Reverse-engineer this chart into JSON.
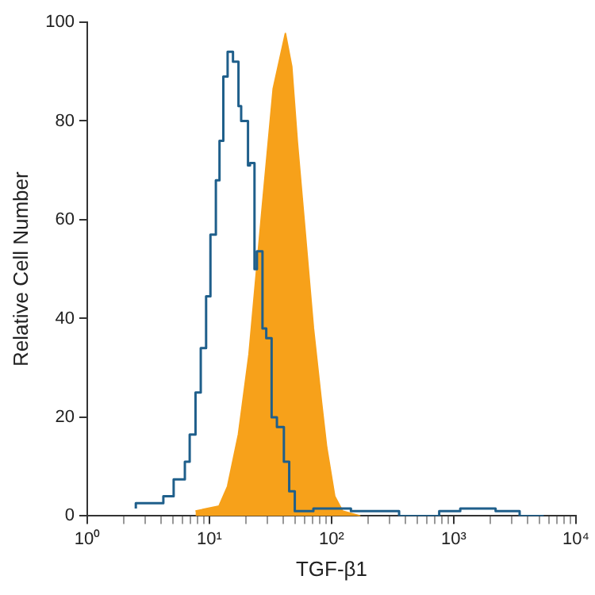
{
  "chart_data": {
    "type": "step",
    "xlabel": "TGF-β1",
    "ylabel": "Relative Cell Number",
    "log": "x",
    "xlim": [
      1,
      10000
    ],
    "ylim": [
      0,
      100
    ],
    "xticks": [
      {
        "value": 1,
        "label": "10⁰"
      },
      {
        "value": 2,
        "label": null
      },
      {
        "value": 3,
        "label": null
      },
      {
        "value": 4,
        "label": null
      },
      {
        "value": 5,
        "label": null
      },
      {
        "value": 6,
        "label": null
      },
      {
        "value": 7,
        "label": null
      },
      {
        "value": 8,
        "label": null
      },
      {
        "value": 9,
        "label": null
      },
      {
        "value": 10,
        "label": "10¹"
      },
      {
        "value": 20,
        "label": null
      },
      {
        "value": 30,
        "label": null
      },
      {
        "value": 40,
        "label": null
      },
      {
        "value": 50,
        "label": null
      },
      {
        "value": 60,
        "label": null
      },
      {
        "value": 70,
        "label": null
      },
      {
        "value": 80,
        "label": null
      },
      {
        "value": 90,
        "label": null
      },
      {
        "value": 100,
        "label": "10²"
      },
      {
        "value": 200,
        "label": null
      },
      {
        "value": 300,
        "label": null
      },
      {
        "value": 400,
        "label": null
      },
      {
        "value": 500,
        "label": null
      },
      {
        "value": 600,
        "label": null
      },
      {
        "value": 700,
        "label": null
      },
      {
        "value": 800,
        "label": null
      },
      {
        "value": 900,
        "label": null
      },
      {
        "value": 1000,
        "label": "10³"
      },
      {
        "value": 2000,
        "label": null
      },
      {
        "value": 3000,
        "label": null
      },
      {
        "value": 4000,
        "label": null
      },
      {
        "value": 5000,
        "label": null
      },
      {
        "value": 6000,
        "label": null
      },
      {
        "value": 7000,
        "label": null
      },
      {
        "value": 8000,
        "label": null
      },
      {
        "value": 9000,
        "label": null
      },
      {
        "value": 10000,
        "label": "10⁴"
      }
    ],
    "yticks": [
      0,
      20,
      40,
      60,
      80,
      100
    ],
    "series": [
      {
        "type": "area",
        "color": "#f7a11a",
        "x": [
          7.7,
          12,
          14.1,
          17.3,
          21.1,
          27.2,
          33.3,
          41.9,
          47.2,
          52.4,
          61,
          71,
          82.7,
          91,
          106,
          123,
          172
        ],
        "values": [
          1,
          2,
          6,
          16.5,
          32.7,
          63,
          86.5,
          97.7,
          91,
          75.8,
          57,
          38,
          23,
          14,
          4,
          1,
          0
        ]
      },
      {
        "color": "#1f5f8b",
        "x": [
          2.5,
          4.2,
          5.1,
          6.3,
          6.9,
          7.7,
          8.5,
          9.4,
          10.2,
          11.3,
          12.1,
          13,
          14.1,
          15.6,
          17.3,
          18.2,
          20.7,
          21.5,
          23.4,
          24.5,
          27.2,
          29.2,
          32.3,
          35.7,
          40.7,
          45,
          50,
          71,
          144,
          357,
          760,
          1130,
          2200,
          3460,
          5450
        ],
        "values": [
          1.5,
          2.6,
          4,
          7.4,
          11,
          16.5,
          25,
          34,
          44.5,
          57,
          68,
          76,
          89,
          94,
          92,
          83,
          80,
          71,
          71.5,
          50,
          53.6,
          38,
          36,
          20,
          18,
          11,
          5,
          1,
          1.5,
          1,
          0,
          1,
          1.5,
          1,
          0
        ]
      }
    ]
  }
}
